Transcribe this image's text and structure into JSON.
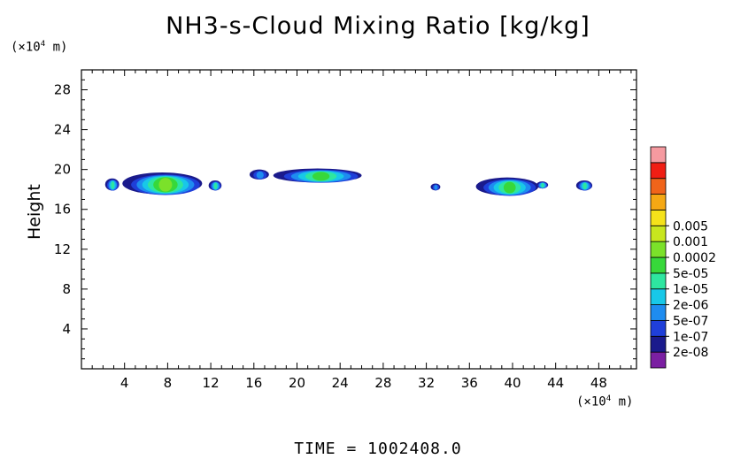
{
  "title": "NH3-s-Cloud Mixing Ratio [kg/kg]",
  "y_unit": {
    "prefix": "(×10",
    "exp": "4",
    "suffix": " m)"
  },
  "x_unit": {
    "prefix": "(×10",
    "exp": "4",
    "suffix": " m)"
  },
  "time_label": "TIME  =  1002408.0",
  "chart_data": {
    "type": "heatmap",
    "title": "NH3-s-Cloud Mixing Ratio [kg/kg]",
    "xlabel": "",
    "ylabel": "Height",
    "xlim": [
      0,
      51.5
    ],
    "ylim": [
      0,
      30
    ],
    "x_ticks": [
      4,
      8,
      12,
      16,
      20,
      24,
      28,
      32,
      36,
      40,
      44,
      48
    ],
    "y_ticks": [
      4,
      8,
      12,
      16,
      20,
      24,
      28
    ],
    "grid": false,
    "legend": {
      "position": "right",
      "colors": [
        "#7b1fa2",
        "#1a1a8c",
        "#1f3fd9",
        "#1e8cf0",
        "#18c8e8",
        "#2ee6a0",
        "#37d83a",
        "#7be12a",
        "#c8e61e",
        "#f5e21a",
        "#f5a814",
        "#f0641a",
        "#f01e14",
        "#f59aa0"
      ],
      "labels": [
        "2e-08",
        "1e-07",
        "5e-07",
        "2e-06",
        "1e-05",
        "5e-05",
        "0.0002",
        "0.001",
        "0.005"
      ]
    },
    "regions": [
      {
        "x_min": 2.2,
        "x_max": 3.5,
        "y_min": 17.9,
        "y_max": 19.1,
        "peak": "2e-06"
      },
      {
        "x_min": 3.8,
        "x_max": 11.2,
        "y_min": 17.5,
        "y_max": 19.7,
        "peak": "5e-05"
      },
      {
        "x_min": 11.8,
        "x_max": 13.0,
        "y_min": 17.9,
        "y_max": 18.9,
        "peak": "2e-06"
      },
      {
        "x_min": 15.6,
        "x_max": 17.4,
        "y_min": 19.0,
        "y_max": 20.0,
        "peak": "1e-07"
      },
      {
        "x_min": 17.8,
        "x_max": 26.0,
        "y_min": 18.7,
        "y_max": 20.1,
        "peak": "1e-05"
      },
      {
        "x_min": 32.4,
        "x_max": 33.3,
        "y_min": 17.9,
        "y_max": 18.6,
        "peak": "1e-07"
      },
      {
        "x_min": 36.6,
        "x_max": 42.4,
        "y_min": 17.4,
        "y_max": 19.2,
        "peak": "1e-05"
      },
      {
        "x_min": 42.2,
        "x_max": 43.3,
        "y_min": 18.1,
        "y_max": 18.8,
        "peak": "2e-06"
      },
      {
        "x_min": 45.9,
        "x_max": 47.4,
        "y_min": 17.9,
        "y_max": 18.9,
        "peak": "2e-06"
      }
    ]
  }
}
